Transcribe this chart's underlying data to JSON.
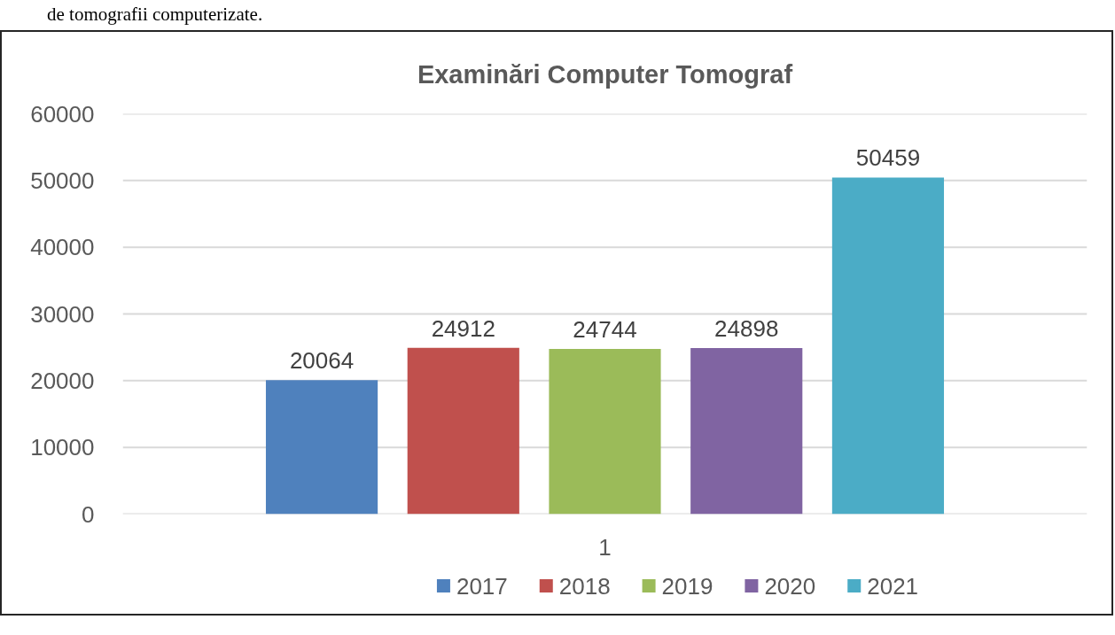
{
  "chart_data": {
    "type": "bar",
    "title": "Examinări Computer Tomograf",
    "annotations": [
      "de tomografii computerizate."
    ],
    "categories": [
      "1"
    ],
    "series": [
      {
        "name": "2017",
        "color": "#4f81bd",
        "values": [
          20064
        ]
      },
      {
        "name": "2018",
        "color": "#c0504d",
        "values": [
          24912
        ]
      },
      {
        "name": "2019",
        "color": "#9bbb59",
        "values": [
          24744
        ]
      },
      {
        "name": "2020",
        "color": "#8064a2",
        "values": [
          24898
        ]
      },
      {
        "name": "2021",
        "color": "#4bacc6",
        "values": [
          50459
        ]
      }
    ],
    "ylim": [
      0,
      60000
    ],
    "yticks": [
      0,
      10000,
      20000,
      30000,
      40000,
      50000,
      60000
    ],
    "grid": "y",
    "legend": "bottom",
    "data_labels": true
  }
}
